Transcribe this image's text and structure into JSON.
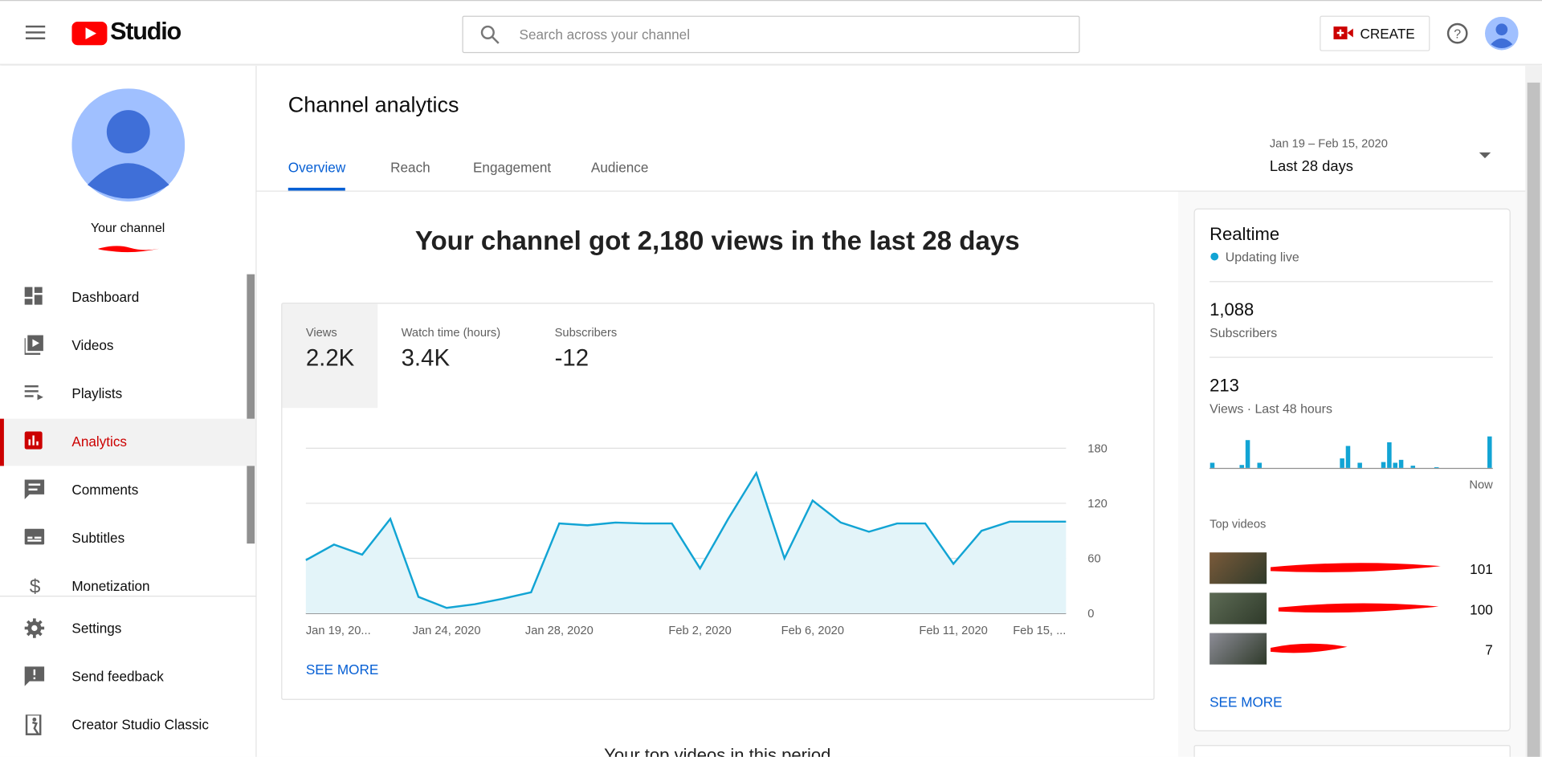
{
  "header": {
    "logo": "Studio",
    "search_placeholder": "Search across your channel",
    "create": "CREATE"
  },
  "sidebar": {
    "channel": "Your channel",
    "items": [
      "Dashboard",
      "Videos",
      "Playlists",
      "Analytics",
      "Comments",
      "Subtitles",
      "Monetization"
    ],
    "footer_items": [
      "Settings",
      "Send feedback",
      "Creator Studio Classic"
    ]
  },
  "page": {
    "title": "Channel analytics",
    "tabs": [
      "Overview",
      "Reach",
      "Engagement",
      "Audience"
    ],
    "date_range": "Jan 19 – Feb 15, 2020",
    "period": "Last 28 days",
    "headline": "Your channel got 2,180 views in the last 28 days",
    "metrics": [
      {
        "label": "Views",
        "value": "2.2K"
      },
      {
        "label": "Watch time (hours)",
        "value": "3.4K"
      },
      {
        "label": "Subscribers",
        "value": "-12"
      }
    ],
    "see_more": "SEE MORE",
    "next_section": "Your top videos in this period"
  },
  "realtime": {
    "title": "Realtime",
    "status": "Updating live",
    "subscribers": "1,088",
    "subscribers_label": "Subscribers",
    "views": "213",
    "views_label": "Views · Last 48 hours",
    "top_videos_label": "Top videos",
    "top_videos": [
      101,
      100,
      7
    ],
    "see_more": "SEE MORE"
  },
  "chart_data": [
    {
      "type": "area",
      "categories": [
        "Jan 19, 20...",
        null,
        null,
        null,
        null,
        "Jan 24, 2020",
        null,
        null,
        null,
        "Jan 28, 2020",
        null,
        null,
        null,
        null,
        "Feb 2, 2020",
        null,
        null,
        null,
        "Feb 6, 2020",
        null,
        null,
        null,
        null,
        "Feb 11, 2020",
        null,
        null,
        null,
        "Feb 15, ..."
      ],
      "values": [
        58,
        75,
        64,
        103,
        18,
        6,
        10,
        16,
        23,
        98,
        96,
        99,
        98,
        98,
        49,
        103,
        153,
        60,
        123,
        99,
        89,
        98,
        98,
        54,
        90,
        100,
        100,
        100
      ],
      "color": "#12a4d4",
      "fill_color": "#e3f4f9",
      "ylim": [
        0,
        180
      ],
      "yticks": [
        0,
        60,
        120,
        180
      ],
      "grid": true
    },
    {
      "type": "bar",
      "categories": [
        null,
        null,
        null,
        null,
        null,
        null,
        null,
        null,
        null,
        null,
        null,
        null,
        null,
        null,
        null,
        null,
        null,
        null,
        null,
        null,
        null,
        null,
        null,
        null,
        null,
        null,
        null,
        null,
        null,
        null,
        null,
        null,
        null,
        null,
        null,
        null,
        null,
        null,
        null,
        null,
        null,
        null,
        null,
        null,
        null,
        null,
        null,
        "Now"
      ],
      "values": [
        7,
        0,
        0,
        0,
        0,
        4,
        38,
        0,
        7,
        0,
        0,
        0,
        0,
        0,
        0,
        0,
        0,
        0,
        0,
        0,
        0,
        0,
        13,
        30,
        0,
        7,
        0,
        0,
        0,
        8,
        35,
        7,
        11,
        0,
        3,
        0,
        0,
        0,
        1,
        0,
        0,
        0,
        0,
        0,
        0,
        0,
        0,
        43
      ],
      "color": "#12a4d4"
    }
  ]
}
